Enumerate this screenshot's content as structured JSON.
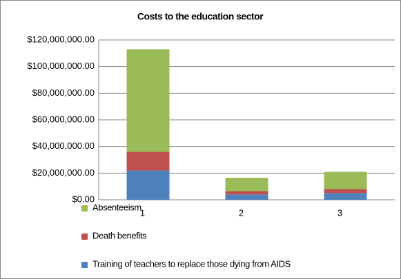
{
  "chart_data": {
    "type": "stacked-bar",
    "title": "Costs to the education sector",
    "categories": [
      "1",
      "2",
      "3"
    ],
    "series": [
      {
        "name": "Training of teachers to replace those dying from AIDS",
        "color": "#4f81bd",
        "values": [
          22000000,
          4000000,
          5000000
        ]
      },
      {
        "name": "Death benefits",
        "color": "#c0504d",
        "values": [
          14000000,
          2500000,
          3000000
        ]
      },
      {
        "name": "Absenteeism",
        "color": "#9bbb59",
        "values": [
          77000000,
          10000000,
          13000000
        ]
      }
    ],
    "ylim": [
      0,
      120000000
    ],
    "yticks": [
      {
        "value": 0,
        "label": "$0.00"
      },
      {
        "value": 20000000,
        "label": "$20,000,000.00"
      },
      {
        "value": 40000000,
        "label": "$40,000,000.00"
      },
      {
        "value": 60000000,
        "label": "$60,000,000.00"
      },
      {
        "value": 80000000,
        "label": "$80,000,000.00"
      },
      {
        "value": 100000000,
        "label": "$100,000,000.00"
      },
      {
        "value": 120000000,
        "label": "$120,000,000.00"
      }
    ],
    "grid": true,
    "legend": "bottom"
  }
}
